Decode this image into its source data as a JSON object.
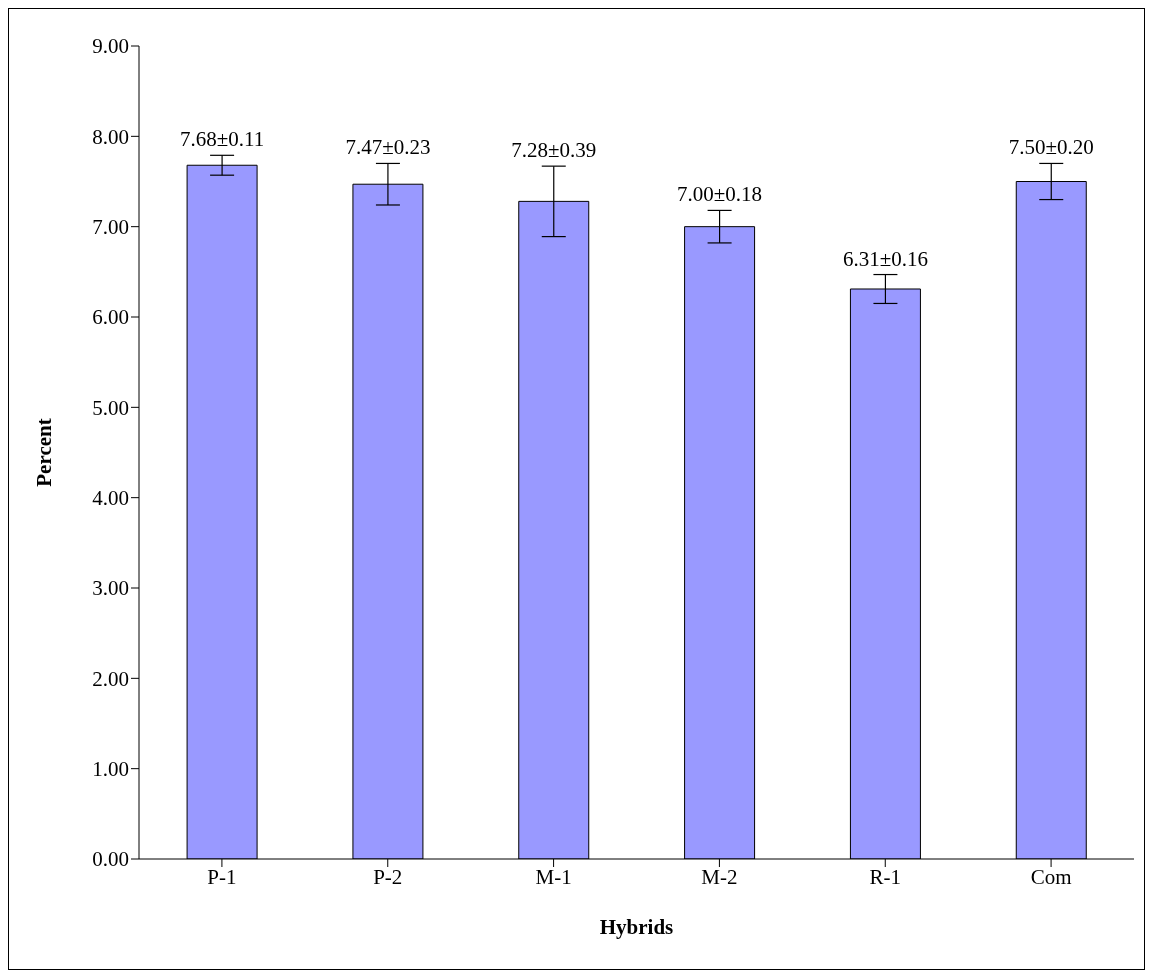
{
  "chart_data": {
    "type": "bar",
    "xlabel": "Hybrids",
    "ylabel": "Percent",
    "categories": [
      "P-1",
      "P-2",
      "M-1",
      "M-2",
      "R-1",
      "Com"
    ],
    "values": [
      7.68,
      7.47,
      7.28,
      7.0,
      6.31,
      7.5
    ],
    "errors": [
      0.11,
      0.23,
      0.39,
      0.18,
      0.16,
      0.2
    ],
    "value_labels": [
      "7.68±0.11",
      "7.47±0.23",
      "7.28±0.39",
      "7.00±0.18",
      "6.31±0.16",
      "7.50±0.20"
    ],
    "color": "#9999ff",
    "ylim": [
      0,
      9
    ],
    "yticks": [
      {
        "value": 0,
        "label": "0.00"
      },
      {
        "value": 1,
        "label": "1.00"
      },
      {
        "value": 2,
        "label": "2.00"
      },
      {
        "value": 3,
        "label": "3.00"
      },
      {
        "value": 4,
        "label": "4.00"
      },
      {
        "value": 5,
        "label": "5.00"
      },
      {
        "value": 6,
        "label": "6.00"
      },
      {
        "value": 7,
        "label": "7.00"
      },
      {
        "value": 8,
        "label": "8.00"
      },
      {
        "value": 9,
        "label": "9.00"
      }
    ]
  }
}
